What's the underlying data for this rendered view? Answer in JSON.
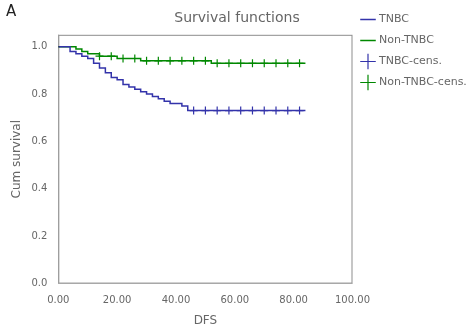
{
  "chart_data": {
    "type": "line",
    "title": "Survival functions",
    "panel_label": "A",
    "xlabel": "DFS",
    "ylabel": "Cum survival",
    "xlim": [
      0,
      100
    ],
    "ylim": [
      0.0,
      1.05
    ],
    "xticks": [
      {
        "value": 0,
        "label": "0.00"
      },
      {
        "value": 20,
        "label": "20.00"
      },
      {
        "value": 40,
        "label": "40.00"
      },
      {
        "value": 60,
        "label": "60.00"
      },
      {
        "value": 80,
        "label": "80.00"
      },
      {
        "value": 100,
        "label": "100.00"
      }
    ],
    "yticks": [
      {
        "value": 0,
        "label": "0.0"
      },
      0.2,
      0.4,
      0.6,
      0.8,
      {
        "value": 1,
        "label": "1.0"
      }
    ],
    "grid": false,
    "legend": "right",
    "series": [
      {
        "name": "TNBC",
        "type": "step",
        "line_style": "solid",
        "color": "#3333aa",
        "x": [
          0,
          2,
          4,
          6,
          8,
          10,
          12,
          14,
          16,
          18,
          20,
          22,
          24,
          26,
          28,
          30,
          32,
          34,
          36,
          38,
          40,
          42,
          44,
          46,
          48,
          50,
          52,
          54,
          56,
          58,
          60,
          62,
          64,
          66,
          68,
          70,
          72,
          74,
          76,
          78,
          80,
          82,
          84
        ],
        "values": [
          1.0,
          1.0,
          0.98,
          0.97,
          0.96,
          0.95,
          0.93,
          0.91,
          0.89,
          0.87,
          0.86,
          0.84,
          0.83,
          0.82,
          0.81,
          0.8,
          0.79,
          0.78,
          0.77,
          0.76,
          0.76,
          0.75,
          0.73,
          0.73,
          0.73,
          0.73,
          0.73,
          0.73,
          0.73,
          0.73,
          0.73,
          0.73,
          0.73,
          0.73,
          0.73,
          0.73,
          0.73,
          0.73,
          0.73,
          0.73,
          0.73,
          0.73,
          0.73
        ]
      },
      {
        "name": "Non-TNBC",
        "type": "step",
        "line_style": "solid",
        "color": "#008800",
        "x": [
          0,
          2,
          4,
          6,
          8,
          10,
          12,
          14,
          16,
          18,
          20,
          22,
          24,
          26,
          28,
          30,
          32,
          34,
          36,
          38,
          40,
          42,
          44,
          46,
          48,
          50,
          52,
          54,
          56,
          58,
          60,
          62,
          64,
          66,
          68,
          70,
          72,
          74,
          76,
          78,
          80,
          82,
          84
        ],
        "values": [
          1.0,
          1.0,
          1.0,
          0.99,
          0.98,
          0.97,
          0.97,
          0.96,
          0.96,
          0.96,
          0.95,
          0.95,
          0.95,
          0.95,
          0.94,
          0.94,
          0.94,
          0.94,
          0.94,
          0.94,
          0.94,
          0.94,
          0.94,
          0.94,
          0.94,
          0.94,
          0.93,
          0.93,
          0.93,
          0.93,
          0.93,
          0.93,
          0.93,
          0.93,
          0.93,
          0.93,
          0.93,
          0.93,
          0.93,
          0.93,
          0.93,
          0.93,
          0.93
        ]
      },
      {
        "name": "TNBC-cens.",
        "type": "scatter",
        "marker": "+",
        "color": "#3333aa",
        "x": [
          46,
          50,
          54,
          58,
          62,
          66,
          70,
          74,
          78,
          82
        ],
        "values": [
          0.73,
          0.73,
          0.73,
          0.73,
          0.73,
          0.73,
          0.73,
          0.73,
          0.73,
          0.73
        ]
      },
      {
        "name": "Non-TNBC-cens.",
        "type": "scatter",
        "marker": "+",
        "color": "#008800",
        "x": [
          14,
          18,
          22,
          26,
          30,
          34,
          38,
          42,
          46,
          50,
          54,
          58,
          62,
          66,
          70,
          74,
          78,
          82
        ],
        "values": [
          0.96,
          0.96,
          0.95,
          0.95,
          0.94,
          0.94,
          0.94,
          0.94,
          0.94,
          0.94,
          0.93,
          0.93,
          0.93,
          0.93,
          0.93,
          0.93,
          0.93,
          0.93
        ]
      }
    ]
  }
}
